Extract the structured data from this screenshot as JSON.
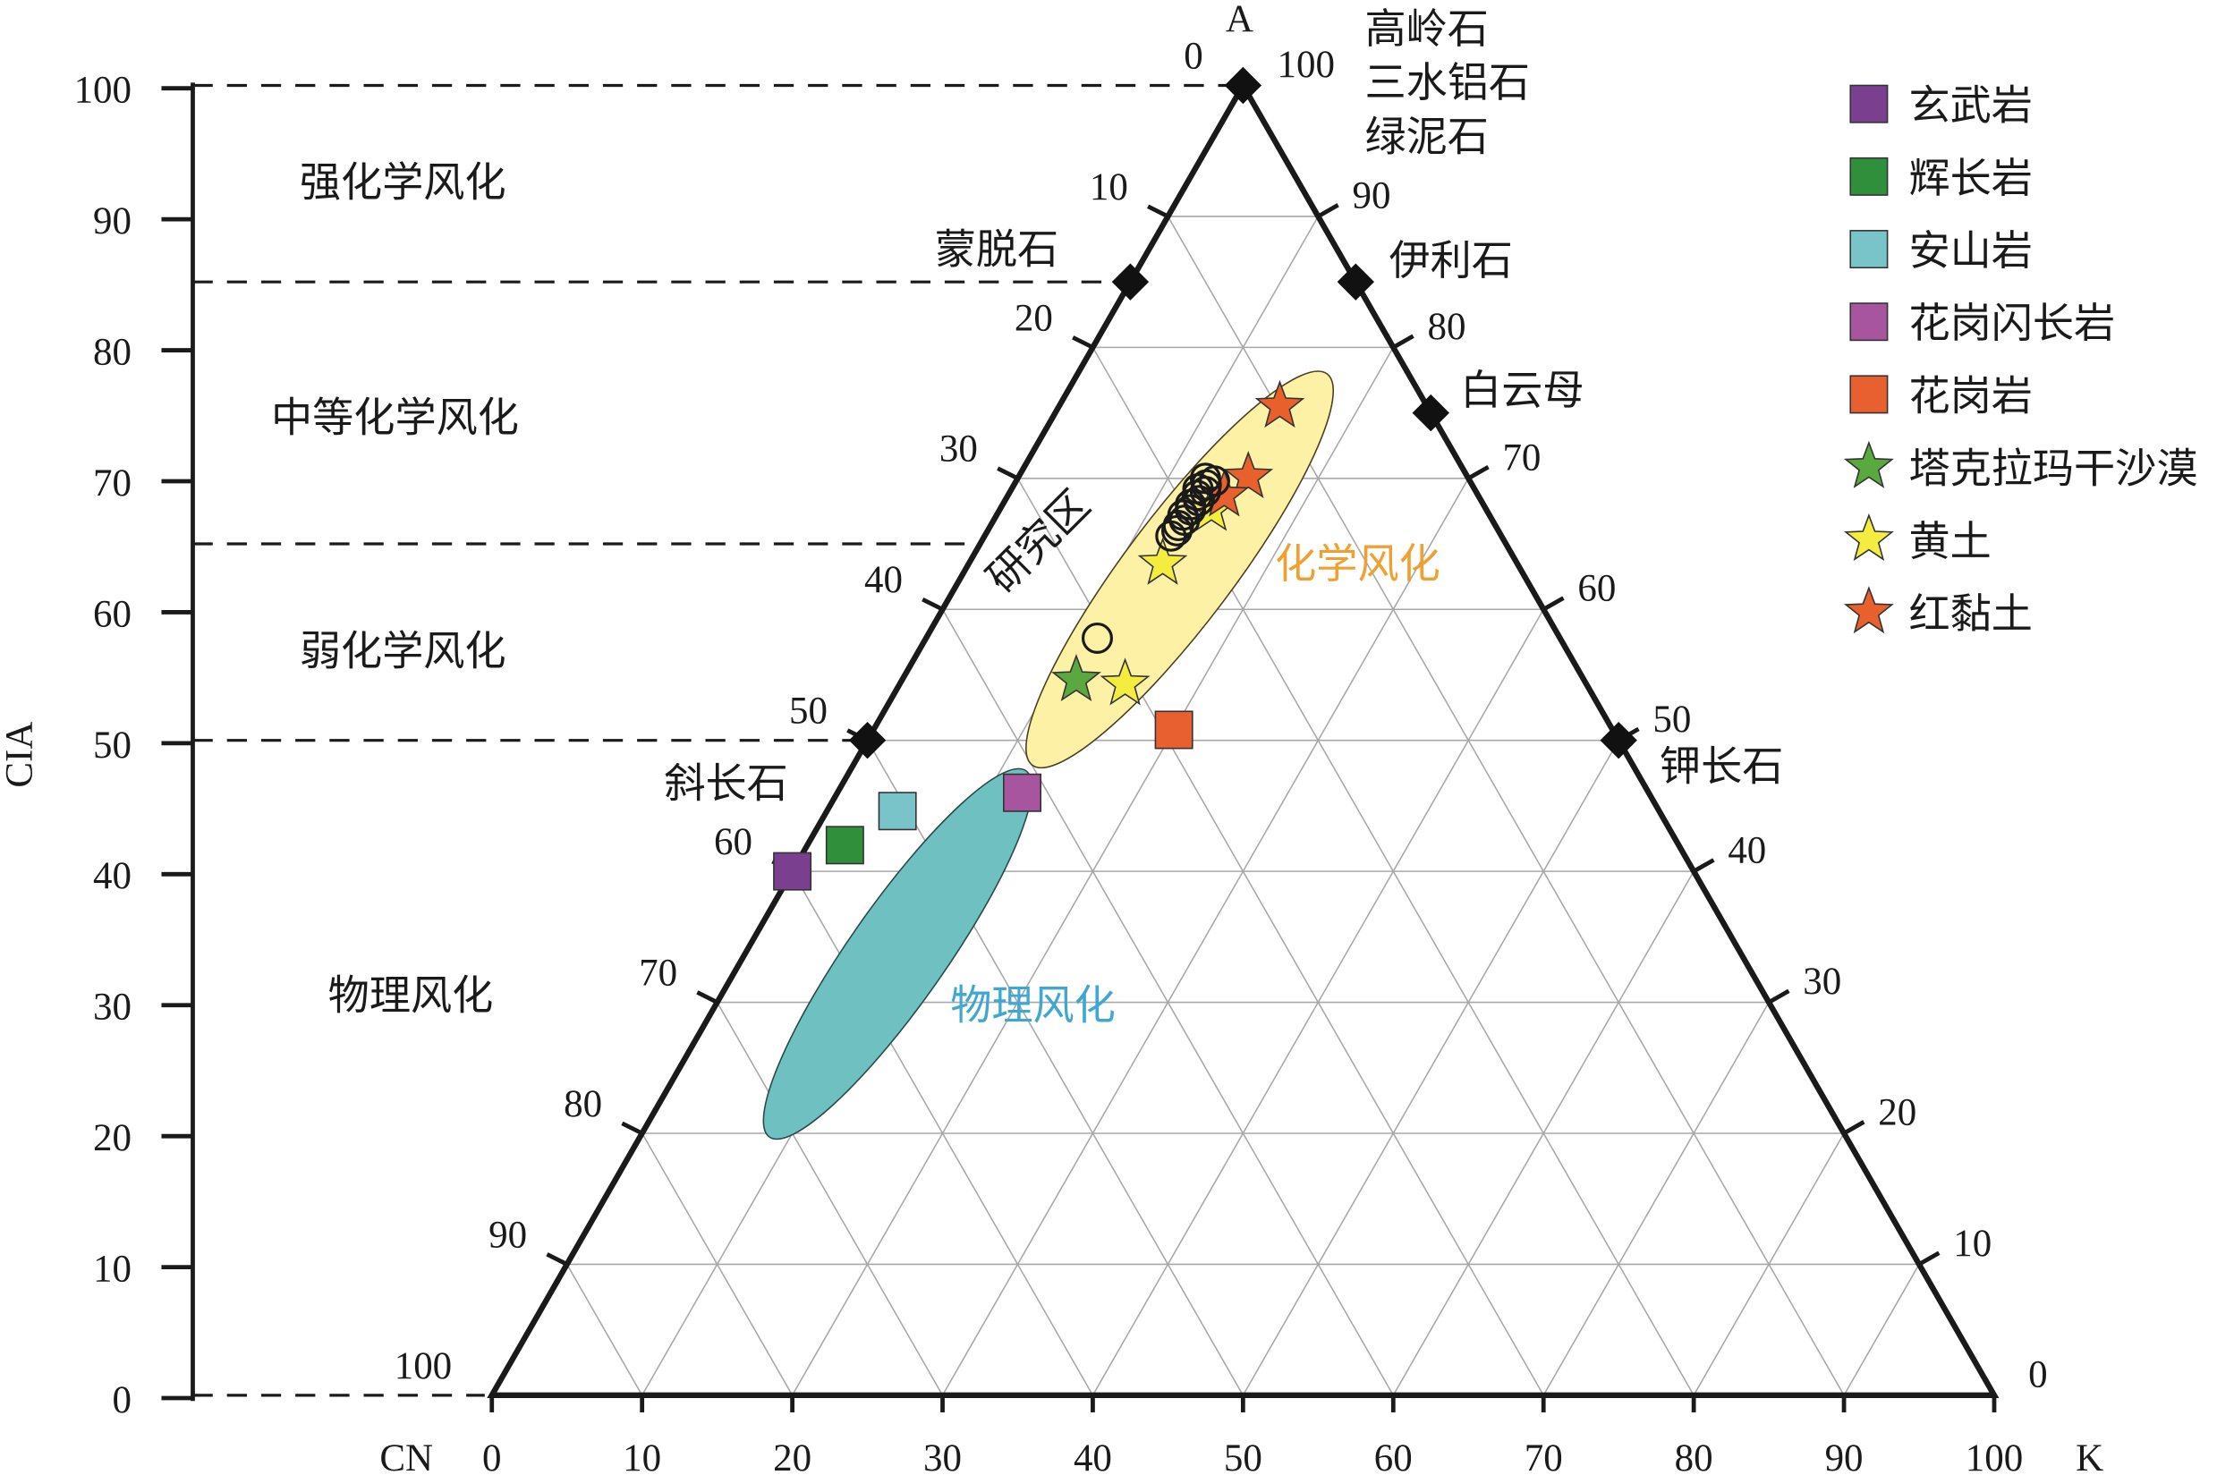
{
  "chart_data": {
    "type": "ternary",
    "vertices": {
      "top": "A",
      "left": "CN",
      "right": "K"
    },
    "left_edge_ticks": [
      "0",
      "10",
      "20",
      "30",
      "40",
      "50",
      "60",
      "70",
      "80",
      "90",
      "100"
    ],
    "right_edge_ticks": [
      "100",
      "90",
      "80",
      "70",
      "60",
      "50",
      "40",
      "30",
      "20",
      "10",
      "0"
    ],
    "bottom_ticks": [
      "0",
      "10",
      "20",
      "30",
      "40",
      "50",
      "60",
      "70",
      "80",
      "90",
      "100"
    ],
    "cia_axis": {
      "label": "CIA",
      "ticks": [
        "0",
        "10",
        "20",
        "30",
        "40",
        "50",
        "60",
        "70",
        "80",
        "90",
        "100"
      ],
      "range": [
        0,
        100
      ]
    },
    "cia_boundaries": [
      100,
      85,
      65,
      50,
      0
    ],
    "zones": [
      {
        "label": "强化学风化"
      },
      {
        "label": "中等化学风化"
      },
      {
        "label": "弱化学风化"
      },
      {
        "label": "物理风化"
      }
    ],
    "minerals": [
      {
        "label": [
          "高岭石",
          "三水铝石",
          "绿泥石"
        ],
        "A": 100,
        "K": 0
      },
      {
        "label": [
          "蒙脱石"
        ],
        "A": 85,
        "K": 0
      },
      {
        "label": [
          "伊利石"
        ],
        "A": 85,
        "K": 15
      },
      {
        "label": [
          "白云母"
        ],
        "A": 75,
        "K": 25
      },
      {
        "label": [
          "斜长石"
        ],
        "A": 50,
        "K": 0
      },
      {
        "label": [
          "钾长石"
        ],
        "A": 50,
        "K": 50
      }
    ],
    "regions": [
      {
        "label": "化学风化",
        "color": "#fdf1a6",
        "label_color": "#f0a030"
      },
      {
        "label": "物理风化",
        "color": "#6fc1c1",
        "label_color": "#40a8d0"
      }
    ],
    "study_area_label": "研究区",
    "series": [
      {
        "name": "玄武岩",
        "marker": "square",
        "color": "#7b3f8f",
        "points": [
          {
            "A": 40,
            "K": 0
          }
        ]
      },
      {
        "name": "辉长岩",
        "marker": "square",
        "color": "#2f8f3a",
        "points": [
          {
            "A": 42,
            "K": 2.5
          }
        ]
      },
      {
        "name": "安山岩",
        "marker": "square",
        "color": "#79c4c8",
        "points": [
          {
            "A": 44.6,
            "K": 4.7
          }
        ]
      },
      {
        "name": "花岗闪长岩",
        "marker": "square",
        "color": "#a855a0",
        "points": [
          {
            "A": 46,
            "K": 12.3
          }
        ]
      },
      {
        "name": "花岗岩",
        "marker": "square",
        "color": "#e86030",
        "points": [
          {
            "A": 50.8,
            "K": 20
          }
        ]
      },
      {
        "name": "塔克拉玛干沙漠",
        "marker": "star",
        "color": "#5aa840",
        "points": [
          {
            "A": 54.6,
            "K": 11.6
          }
        ]
      },
      {
        "name": "黄土",
        "marker": "star",
        "color": "#f5ec40",
        "points": [
          {
            "A": 54.3,
            "K": 15
          },
          {
            "A": 63.5,
            "K": 12.9
          },
          {
            "A": 67.6,
            "K": 14.1
          }
        ]
      },
      {
        "name": "红黏土",
        "marker": "star",
        "color": "#e8602c",
        "points": [
          {
            "A": 75.5,
            "K": 14.7
          },
          {
            "A": 70.1,
            "K": 15.3
          },
          {
            "A": 68.7,
            "K": 14.4
          }
        ]
      },
      {
        "marker": "circle",
        "color": "#1a1a1a",
        "points": [
          {
            "A": 70,
            "K": 12.5
          },
          {
            "A": 69.8,
            "K": 13.2
          },
          {
            "A": 69.5,
            "K": 12.8
          },
          {
            "A": 69.2,
            "K": 12.4
          },
          {
            "A": 69,
            "K": 13
          },
          {
            "A": 68.7,
            "K": 12.6
          },
          {
            "A": 68.3,
            "K": 12.9
          },
          {
            "A": 68,
            "K": 12.5
          },
          {
            "A": 67.6,
            "K": 12.7
          },
          {
            "A": 67.2,
            "K": 12.4
          },
          {
            "A": 66.8,
            "K": 12.7
          },
          {
            "A": 66.4,
            "K": 12.5
          },
          {
            "A": 66,
            "K": 12.6
          },
          {
            "A": 65.6,
            "K": 12.4
          },
          {
            "A": 57.8,
            "K": 11.4
          }
        ]
      }
    ],
    "legend": {
      "position": "top-right"
    }
  }
}
